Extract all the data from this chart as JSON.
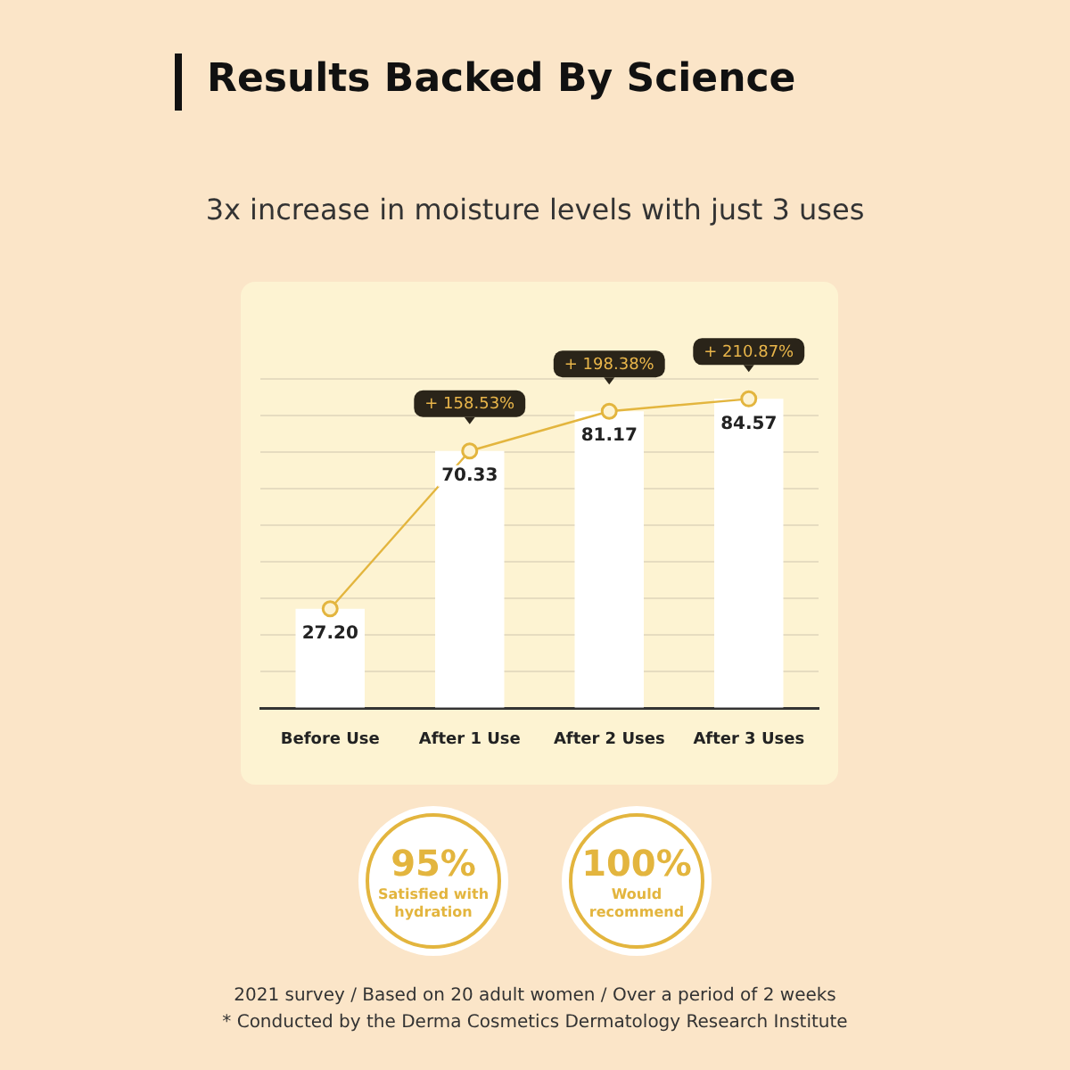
{
  "chart_data": {
    "type": "bar",
    "title": "Results Backed By Science",
    "subtitle": "3x increase in moisture levels with just 3 uses",
    "categories": [
      "Before Use",
      "After 1 Use",
      "After 2 Uses",
      "After 3 Uses"
    ],
    "series": [
      {
        "color": "#ffffff",
        "values": [
          27.2,
          70.33,
          81.17,
          84.57
        ]
      },
      {
        "type": "line",
        "color": "#e3b53e",
        "values": [
          27.2,
          70.33,
          81.17,
          84.57
        ],
        "value_labels": [
          "27.20",
          "70.33",
          "81.17",
          "84.57"
        ],
        "marker": "circle"
      }
    ],
    "ylim": [
      0,
      100
    ],
    "yticks": [
      {
        "value": 0,
        "label": null
      },
      {
        "value": 10,
        "label": null
      },
      {
        "value": 20,
        "label": null
      },
      {
        "value": 30,
        "label": null
      },
      {
        "value": 40,
        "label": null
      },
      {
        "value": 50,
        "label": null
      },
      {
        "value": 60,
        "label": null
      },
      {
        "value": 70,
        "label": null
      },
      {
        "value": 80,
        "label": null
      },
      {
        "value": 90,
        "label": null
      }
    ],
    "grid": "y",
    "tick_labels": "x",
    "legend": false,
    "annotations": [
      {
        "text": "+ 158.53%",
        "x": "After 1 Use",
        "y": 70.33
      },
      {
        "text": "+ 198.38%",
        "x": "After 2 Uses",
        "y": 81.17
      },
      {
        "text": "+ 210.87%",
        "x": "After 3 Uses",
        "y": 84.57
      },
      "95%",
      "Satisfied with hydration",
      "100%",
      "Would recommend",
      "2021 survey / Based on 20 adult women / Over a period of 2 weeks",
      "* Conducted by the Derma Cosmetics Dermatology Research Institute"
    ]
  }
}
